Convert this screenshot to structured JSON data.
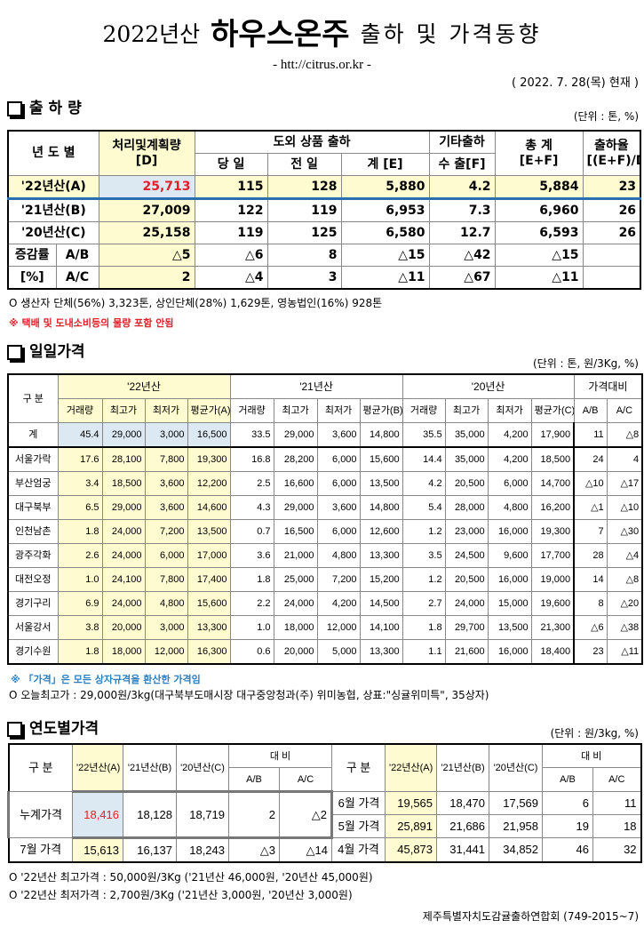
{
  "header": {
    "year": "2022년산",
    "product": "하우스온주",
    "subtitle": "출하 및 가격동향",
    "url": "- htt://citrus.or.kr -",
    "date": "( 2022. 7. 28(목) 현재 )"
  },
  "shipment": {
    "title": "출 하 량",
    "unit": "(단위 : 톤, %)",
    "headers": {
      "year": "년 도 별",
      "plan": "처리및계획량",
      "plan_sub": "[D]",
      "domestic": "도외 상품 출하",
      "today": "당 일",
      "prev": "전 일",
      "sum": "계 [E]",
      "other": "기타출하",
      "export": "수 출[F]",
      "total": "총   계",
      "total_sub": "[E+F]",
      "rate": "출하율",
      "rate_sub": "[(E+F)/D]"
    },
    "rows": [
      {
        "label": "'22년산(A)",
        "plan": "25,713",
        "today": "115",
        "prev": "128",
        "sum": "5,880",
        "export": "4.2",
        "total": "5,884",
        "rate": "23"
      },
      {
        "label": "'21년산(B)",
        "plan": "27,009",
        "today": "122",
        "prev": "119",
        "sum": "6,953",
        "export": "7.3",
        "total": "6,960",
        "rate": "26"
      },
      {
        "label": "'20년산(C)",
        "plan": "25,158",
        "today": "119",
        "prev": "125",
        "sum": "6,580",
        "export": "12.7",
        "total": "6,593",
        "rate": "26"
      }
    ],
    "change_label": "증감률",
    "change_unit": "[%]",
    "changes": [
      {
        "label": "A/B",
        "plan": "△5",
        "today": "△6",
        "prev": "8",
        "sum": "△15",
        "export": "△42",
        "total": "△15",
        "rate": ""
      },
      {
        "label": "A/C",
        "plan": "2",
        "today": "△4",
        "prev": "3",
        "sum": "△11",
        "export": "△67",
        "total": "△11",
        "rate": ""
      }
    ],
    "note1": "O 생산자 단체(56%) 3,323톤,    상인단체(28%) 1,629톤,  영농법인(16%)   928톤",
    "note2": "※ 택배 및 도내소비등의 물량 포함 안됨"
  },
  "daily": {
    "title": "일일가격",
    "unit": "(단위 : 톤, 원/3Kg, %)",
    "headers": {
      "category": "구  분",
      "y22": "'22년산",
      "y21": "'21년산",
      "y20": "'20년산",
      "ratio": "가격대비",
      "sub": [
        "거래량",
        "최고가",
        "최저가",
        "평균가(A)",
        "거래량",
        "최고가",
        "최저가",
        "평균가(B)",
        "거래량",
        "최고가",
        "최저가",
        "평균가(C)",
        "A/B",
        "A/C"
      ]
    },
    "rows": [
      {
        "market": "계",
        "v": [
          "45.4",
          "29,000",
          "3,000",
          "16,500",
          "33.5",
          "29,000",
          "3,600",
          "14,800",
          "35.5",
          "35,000",
          "4,200",
          "17,900",
          "11",
          "△8"
        ]
      },
      {
        "market": "서울가락",
        "v": [
          "17.6",
          "28,100",
          "7,800",
          "19,300",
          "16.8",
          "28,200",
          "6,000",
          "15,600",
          "14.4",
          "35,000",
          "4,200",
          "18,500",
          "24",
          "4"
        ]
      },
      {
        "market": "부산엄궁",
        "v": [
          "3.4",
          "18,500",
          "3,600",
          "12,200",
          "2.5",
          "16,600",
          "6,000",
          "13,500",
          "4.2",
          "20,500",
          "6,000",
          "14,700",
          "△10",
          "△17"
        ]
      },
      {
        "market": "대구북부",
        "v": [
          "6.5",
          "29,000",
          "3,600",
          "14,600",
          "4.3",
          "29,000",
          "3,600",
          "14,800",
          "5.4",
          "28,000",
          "4,800",
          "16,200",
          "△1",
          "△10"
        ]
      },
      {
        "market": "인천남촌",
        "v": [
          "1.8",
          "24,000",
          "7,200",
          "13,500",
          "0.7",
          "16,500",
          "6,000",
          "12,600",
          "1.2",
          "23,000",
          "16,000",
          "19,300",
          "7",
          "△30"
        ]
      },
      {
        "market": "광주각화",
        "v": [
          "2.6",
          "24,000",
          "6,000",
          "17,000",
          "3.6",
          "21,000",
          "4,800",
          "13,300",
          "3.5",
          "24,500",
          "9,600",
          "17,700",
          "28",
          "△4"
        ]
      },
      {
        "market": "대전오정",
        "v": [
          "1.0",
          "24,100",
          "7,800",
          "17,400",
          "1.8",
          "25,000",
          "7,200",
          "15,200",
          "1.2",
          "20,500",
          "16,000",
          "19,000",
          "14",
          "△8"
        ]
      },
      {
        "market": "경기구리",
        "v": [
          "6.9",
          "24,000",
          "4,800",
          "15,600",
          "2.2",
          "24,000",
          "4,200",
          "14,500",
          "2.7",
          "24,000",
          "15,000",
          "19,600",
          "8",
          "△20"
        ]
      },
      {
        "market": "서울강서",
        "v": [
          "3.8",
          "20,000",
          "3,000",
          "13,300",
          "1.0",
          "18,000",
          "12,000",
          "14,100",
          "1.8",
          "29,700",
          "13,500",
          "21,300",
          "△6",
          "△38"
        ]
      },
      {
        "market": "경기수원",
        "v": [
          "1.8",
          "18,000",
          "12,000",
          "16,300",
          "0.6",
          "20,000",
          "5,000",
          "13,300",
          "1.1",
          "21,600",
          "16,000",
          "18,400",
          "23",
          "△11"
        ]
      }
    ],
    "note1": "※ 「가격」은 모든 상자규격을 환산한 가격임",
    "note2": "O 오늘최고가 : 29,000원/3kg(대구북부도매시장   대구중앙청과(주)   위미농협,  상표:\"싱귤위미특\",   35상자)"
  },
  "yearly": {
    "title": "연도별가격",
    "unit": "(단위 : 원/3kg, %)",
    "headers": {
      "category": "구    분",
      "a": "'22년산(A)",
      "b": "'21년산(B)",
      "c": "'20년산(C)",
      "compare": "대    비",
      "ab": "A/B",
      "ac": "A/C"
    },
    "left": [
      {
        "label": "누계가격",
        "a": "18,416",
        "b": "18,128",
        "c": "18,719",
        "ab": "2",
        "ac": "△2"
      },
      {
        "label": "7월 가격",
        "a": "15,613",
        "b": "16,137",
        "c": "18,243",
        "ab": "△3",
        "ac": "△14"
      }
    ],
    "right": [
      {
        "label": "6월 가격",
        "a": "19,565",
        "b": "18,470",
        "c": "17,569",
        "ab": "6",
        "ac": "11"
      },
      {
        "label": "5월 가격",
        "a": "25,891",
        "b": "21,686",
        "c": "21,958",
        "ab": "19",
        "ac": "18"
      },
      {
        "label": "4월 가격",
        "a": "45,873",
        "b": "31,441",
        "c": "34,852",
        "ab": "46",
        "ac": "32"
      }
    ],
    "note1": "O  '22년산 최고가격 : 50,000원/3Kg ('21년산 46,000원, '20년산 45,000원)",
    "note2": "O  '22년산 최저가격 :   2,700원/3Kg ('21년산   3,000원, '20년산  3,000원)"
  },
  "footer": "제주특별자치도감귤출하연합회 (749-2015~7)",
  "colors": {
    "highlight_yellow": "#fffbd0",
    "highlight_blue": "#dce9f3",
    "red": "#e0202a",
    "blue_note": "#2a7fc0"
  }
}
